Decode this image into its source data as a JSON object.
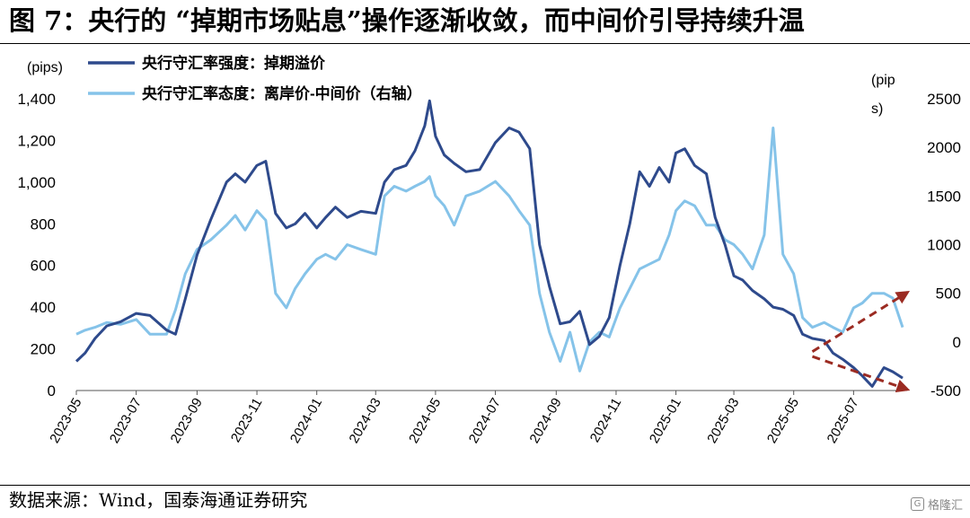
{
  "header": {
    "title": "图 7：央行的 “掉期市场贴息”操作逐渐收敛，而中间价引导持续升温"
  },
  "footer": {
    "source": "数据来源：Wind，国泰海通证券研究",
    "watermark": "格隆汇"
  },
  "colors": {
    "series1": "#2e4a8c",
    "series2": "#85c3e9",
    "arrow": "#9b2b22"
  },
  "chart_data": {
    "type": "line",
    "left_unit": "(pips)",
    "right_unit_line1": "(pip",
    "right_unit_line2": "s)",
    "x_ticks": [
      "2023-05",
      "2023-07",
      "2023-09",
      "2023-11",
      "2024-01",
      "2024-03",
      "2024-05",
      "2024-07",
      "2024-09",
      "2024-11",
      "2025-01",
      "2025-03",
      "2025-05",
      "2025-07"
    ],
    "x_range": [
      "2023-05",
      "2025-08-20"
    ],
    "y_left": {
      "min": 0,
      "max": 1400,
      "ticks": [
        0,
        200,
        400,
        600,
        800,
        1000,
        1200,
        1400
      ],
      "tick_labels": [
        "0",
        "200",
        "400",
        "600",
        "800",
        "1,000",
        "1,200",
        "1,400"
      ]
    },
    "y_right": {
      "min": -500,
      "max": 2500,
      "ticks": [
        -500,
        0,
        500,
        1000,
        1500,
        2000,
        2500
      ],
      "tick_labels": [
        "-500",
        "0",
        "500",
        "1000",
        "1500",
        "2000",
        "2500"
      ]
    },
    "legend": {
      "position": "top-left"
    },
    "series": [
      {
        "name": "央行守汇率强度：掉期溢价",
        "axis": "left",
        "points": [
          [
            "2023-05-01",
            140
          ],
          [
            "2023-05-10",
            180
          ],
          [
            "2023-05-20",
            250
          ],
          [
            "2023-06-01",
            310
          ],
          [
            "2023-06-15",
            330
          ],
          [
            "2023-07-01",
            370
          ],
          [
            "2023-07-15",
            360
          ],
          [
            "2023-08-01",
            290
          ],
          [
            "2023-08-10",
            270
          ],
          [
            "2023-08-20",
            440
          ],
          [
            "2023-09-01",
            650
          ],
          [
            "2023-09-15",
            820
          ],
          [
            "2023-10-01",
            1000
          ],
          [
            "2023-10-10",
            1040
          ],
          [
            "2023-10-20",
            1000
          ],
          [
            "2023-11-01",
            1080
          ],
          [
            "2023-11-10",
            1100
          ],
          [
            "2023-11-20",
            850
          ],
          [
            "2023-12-01",
            780
          ],
          [
            "2023-12-10",
            800
          ],
          [
            "2023-12-20",
            850
          ],
          [
            "2024-01-01",
            780
          ],
          [
            "2024-01-10",
            830
          ],
          [
            "2024-01-20",
            880
          ],
          [
            "2024-02-01",
            830
          ],
          [
            "2024-02-15",
            860
          ],
          [
            "2024-03-01",
            850
          ],
          [
            "2024-03-10",
            1000
          ],
          [
            "2024-03-20",
            1060
          ],
          [
            "2024-04-01",
            1080
          ],
          [
            "2024-04-10",
            1150
          ],
          [
            "2024-04-20",
            1270
          ],
          [
            "2024-04-25",
            1390
          ],
          [
            "2024-05-01",
            1220
          ],
          [
            "2024-05-10",
            1130
          ],
          [
            "2024-05-20",
            1090
          ],
          [
            "2024-06-01",
            1050
          ],
          [
            "2024-06-15",
            1060
          ],
          [
            "2024-07-01",
            1190
          ],
          [
            "2024-07-15",
            1260
          ],
          [
            "2024-07-25",
            1240
          ],
          [
            "2024-08-05",
            1160
          ],
          [
            "2024-08-15",
            700
          ],
          [
            "2024-08-25",
            500
          ],
          [
            "2024-09-05",
            320
          ],
          [
            "2024-09-15",
            330
          ],
          [
            "2024-09-25",
            380
          ],
          [
            "2024-10-05",
            220
          ],
          [
            "2024-10-15",
            260
          ],
          [
            "2024-10-25",
            350
          ],
          [
            "2024-11-05",
            600
          ],
          [
            "2024-11-15",
            800
          ],
          [
            "2024-11-25",
            1050
          ],
          [
            "2024-12-05",
            980
          ],
          [
            "2024-12-15",
            1070
          ],
          [
            "2024-12-25",
            1000
          ],
          [
            "2025-01-01",
            1140
          ],
          [
            "2025-01-10",
            1160
          ],
          [
            "2025-01-20",
            1080
          ],
          [
            "2025-02-01",
            1040
          ],
          [
            "2025-02-10",
            830
          ],
          [
            "2025-02-20",
            700
          ],
          [
            "2025-03-01",
            550
          ],
          [
            "2025-03-10",
            530
          ],
          [
            "2025-03-20",
            480
          ],
          [
            "2025-04-01",
            440
          ],
          [
            "2025-04-10",
            400
          ],
          [
            "2025-04-20",
            390
          ],
          [
            "2025-05-01",
            360
          ],
          [
            "2025-05-10",
            270
          ],
          [
            "2025-05-20",
            250
          ],
          [
            "2025-06-01",
            240
          ],
          [
            "2025-06-10",
            180
          ],
          [
            "2025-06-20",
            150
          ],
          [
            "2025-07-01",
            110
          ],
          [
            "2025-07-10",
            70
          ],
          [
            "2025-07-20",
            20
          ],
          [
            "2025-08-01",
            110
          ],
          [
            "2025-08-10",
            90
          ],
          [
            "2025-08-20",
            60
          ]
        ]
      },
      {
        "name": "央行守汇率态度：离岸价-中间价（右轴）",
        "axis": "right",
        "points": [
          [
            "2023-05-01",
            80
          ],
          [
            "2023-05-10",
            120
          ],
          [
            "2023-05-20",
            150
          ],
          [
            "2023-06-01",
            200
          ],
          [
            "2023-06-15",
            180
          ],
          [
            "2023-07-01",
            230
          ],
          [
            "2023-07-15",
            80
          ],
          [
            "2023-08-01",
            80
          ],
          [
            "2023-08-10",
            330
          ],
          [
            "2023-08-20",
            700
          ],
          [
            "2023-09-01",
            950
          ],
          [
            "2023-09-15",
            1050
          ],
          [
            "2023-10-01",
            1200
          ],
          [
            "2023-10-10",
            1300
          ],
          [
            "2023-10-20",
            1150
          ],
          [
            "2023-11-01",
            1350
          ],
          [
            "2023-11-10",
            1250
          ],
          [
            "2023-11-20",
            500
          ],
          [
            "2023-12-01",
            350
          ],
          [
            "2023-12-10",
            550
          ],
          [
            "2023-12-20",
            700
          ],
          [
            "2024-01-01",
            850
          ],
          [
            "2024-01-10",
            900
          ],
          [
            "2024-01-20",
            850
          ],
          [
            "2024-02-01",
            1000
          ],
          [
            "2024-02-15",
            950
          ],
          [
            "2024-03-01",
            900
          ],
          [
            "2024-03-10",
            1500
          ],
          [
            "2024-03-20",
            1600
          ],
          [
            "2024-04-01",
            1550
          ],
          [
            "2024-04-10",
            1600
          ],
          [
            "2024-04-20",
            1650
          ],
          [
            "2024-04-25",
            1700
          ],
          [
            "2024-05-01",
            1500
          ],
          [
            "2024-05-10",
            1400
          ],
          [
            "2024-05-20",
            1200
          ],
          [
            "2024-06-01",
            1500
          ],
          [
            "2024-06-15",
            1550
          ],
          [
            "2024-07-01",
            1650
          ],
          [
            "2024-07-15",
            1500
          ],
          [
            "2024-07-25",
            1350
          ],
          [
            "2024-08-05",
            1200
          ],
          [
            "2024-08-15",
            500
          ],
          [
            "2024-08-25",
            100
          ],
          [
            "2024-09-05",
            -200
          ],
          [
            "2024-09-15",
            100
          ],
          [
            "2024-09-25",
            -300
          ],
          [
            "2024-10-05",
            0
          ],
          [
            "2024-10-15",
            100
          ],
          [
            "2024-10-25",
            50
          ],
          [
            "2024-11-05",
            350
          ],
          [
            "2024-11-15",
            550
          ],
          [
            "2024-11-25",
            750
          ],
          [
            "2024-12-05",
            800
          ],
          [
            "2024-12-15",
            850
          ],
          [
            "2024-12-25",
            1100
          ],
          [
            "2025-01-01",
            1350
          ],
          [
            "2025-01-10",
            1450
          ],
          [
            "2025-01-20",
            1400
          ],
          [
            "2025-02-01",
            1200
          ],
          [
            "2025-02-10",
            1200
          ],
          [
            "2025-02-20",
            1050
          ],
          [
            "2025-03-01",
            1000
          ],
          [
            "2025-03-10",
            900
          ],
          [
            "2025-03-20",
            750
          ],
          [
            "2025-04-01",
            1100
          ],
          [
            "2025-04-10",
            2200
          ],
          [
            "2025-04-20",
            900
          ],
          [
            "2025-05-01",
            700
          ],
          [
            "2025-05-10",
            250
          ],
          [
            "2025-05-20",
            150
          ],
          [
            "2025-06-01",
            200
          ],
          [
            "2025-06-10",
            150
          ],
          [
            "2025-06-20",
            100
          ],
          [
            "2025-07-01",
            350
          ],
          [
            "2025-07-10",
            400
          ],
          [
            "2025-07-20",
            500
          ],
          [
            "2025-08-01",
            500
          ],
          [
            "2025-08-10",
            450
          ],
          [
            "2025-08-20",
            150
          ]
        ]
      }
    ],
    "annotations": [
      {
        "type": "arrow",
        "axis": "right",
        "from": [
          "2025-05-20",
          -100
        ],
        "to": [
          "2025-08-25",
          510
        ]
      },
      {
        "type": "arrow",
        "axis": "right",
        "from": [
          "2025-05-20",
          -150
        ],
        "to": [
          "2025-08-25",
          -490
        ]
      }
    ]
  }
}
